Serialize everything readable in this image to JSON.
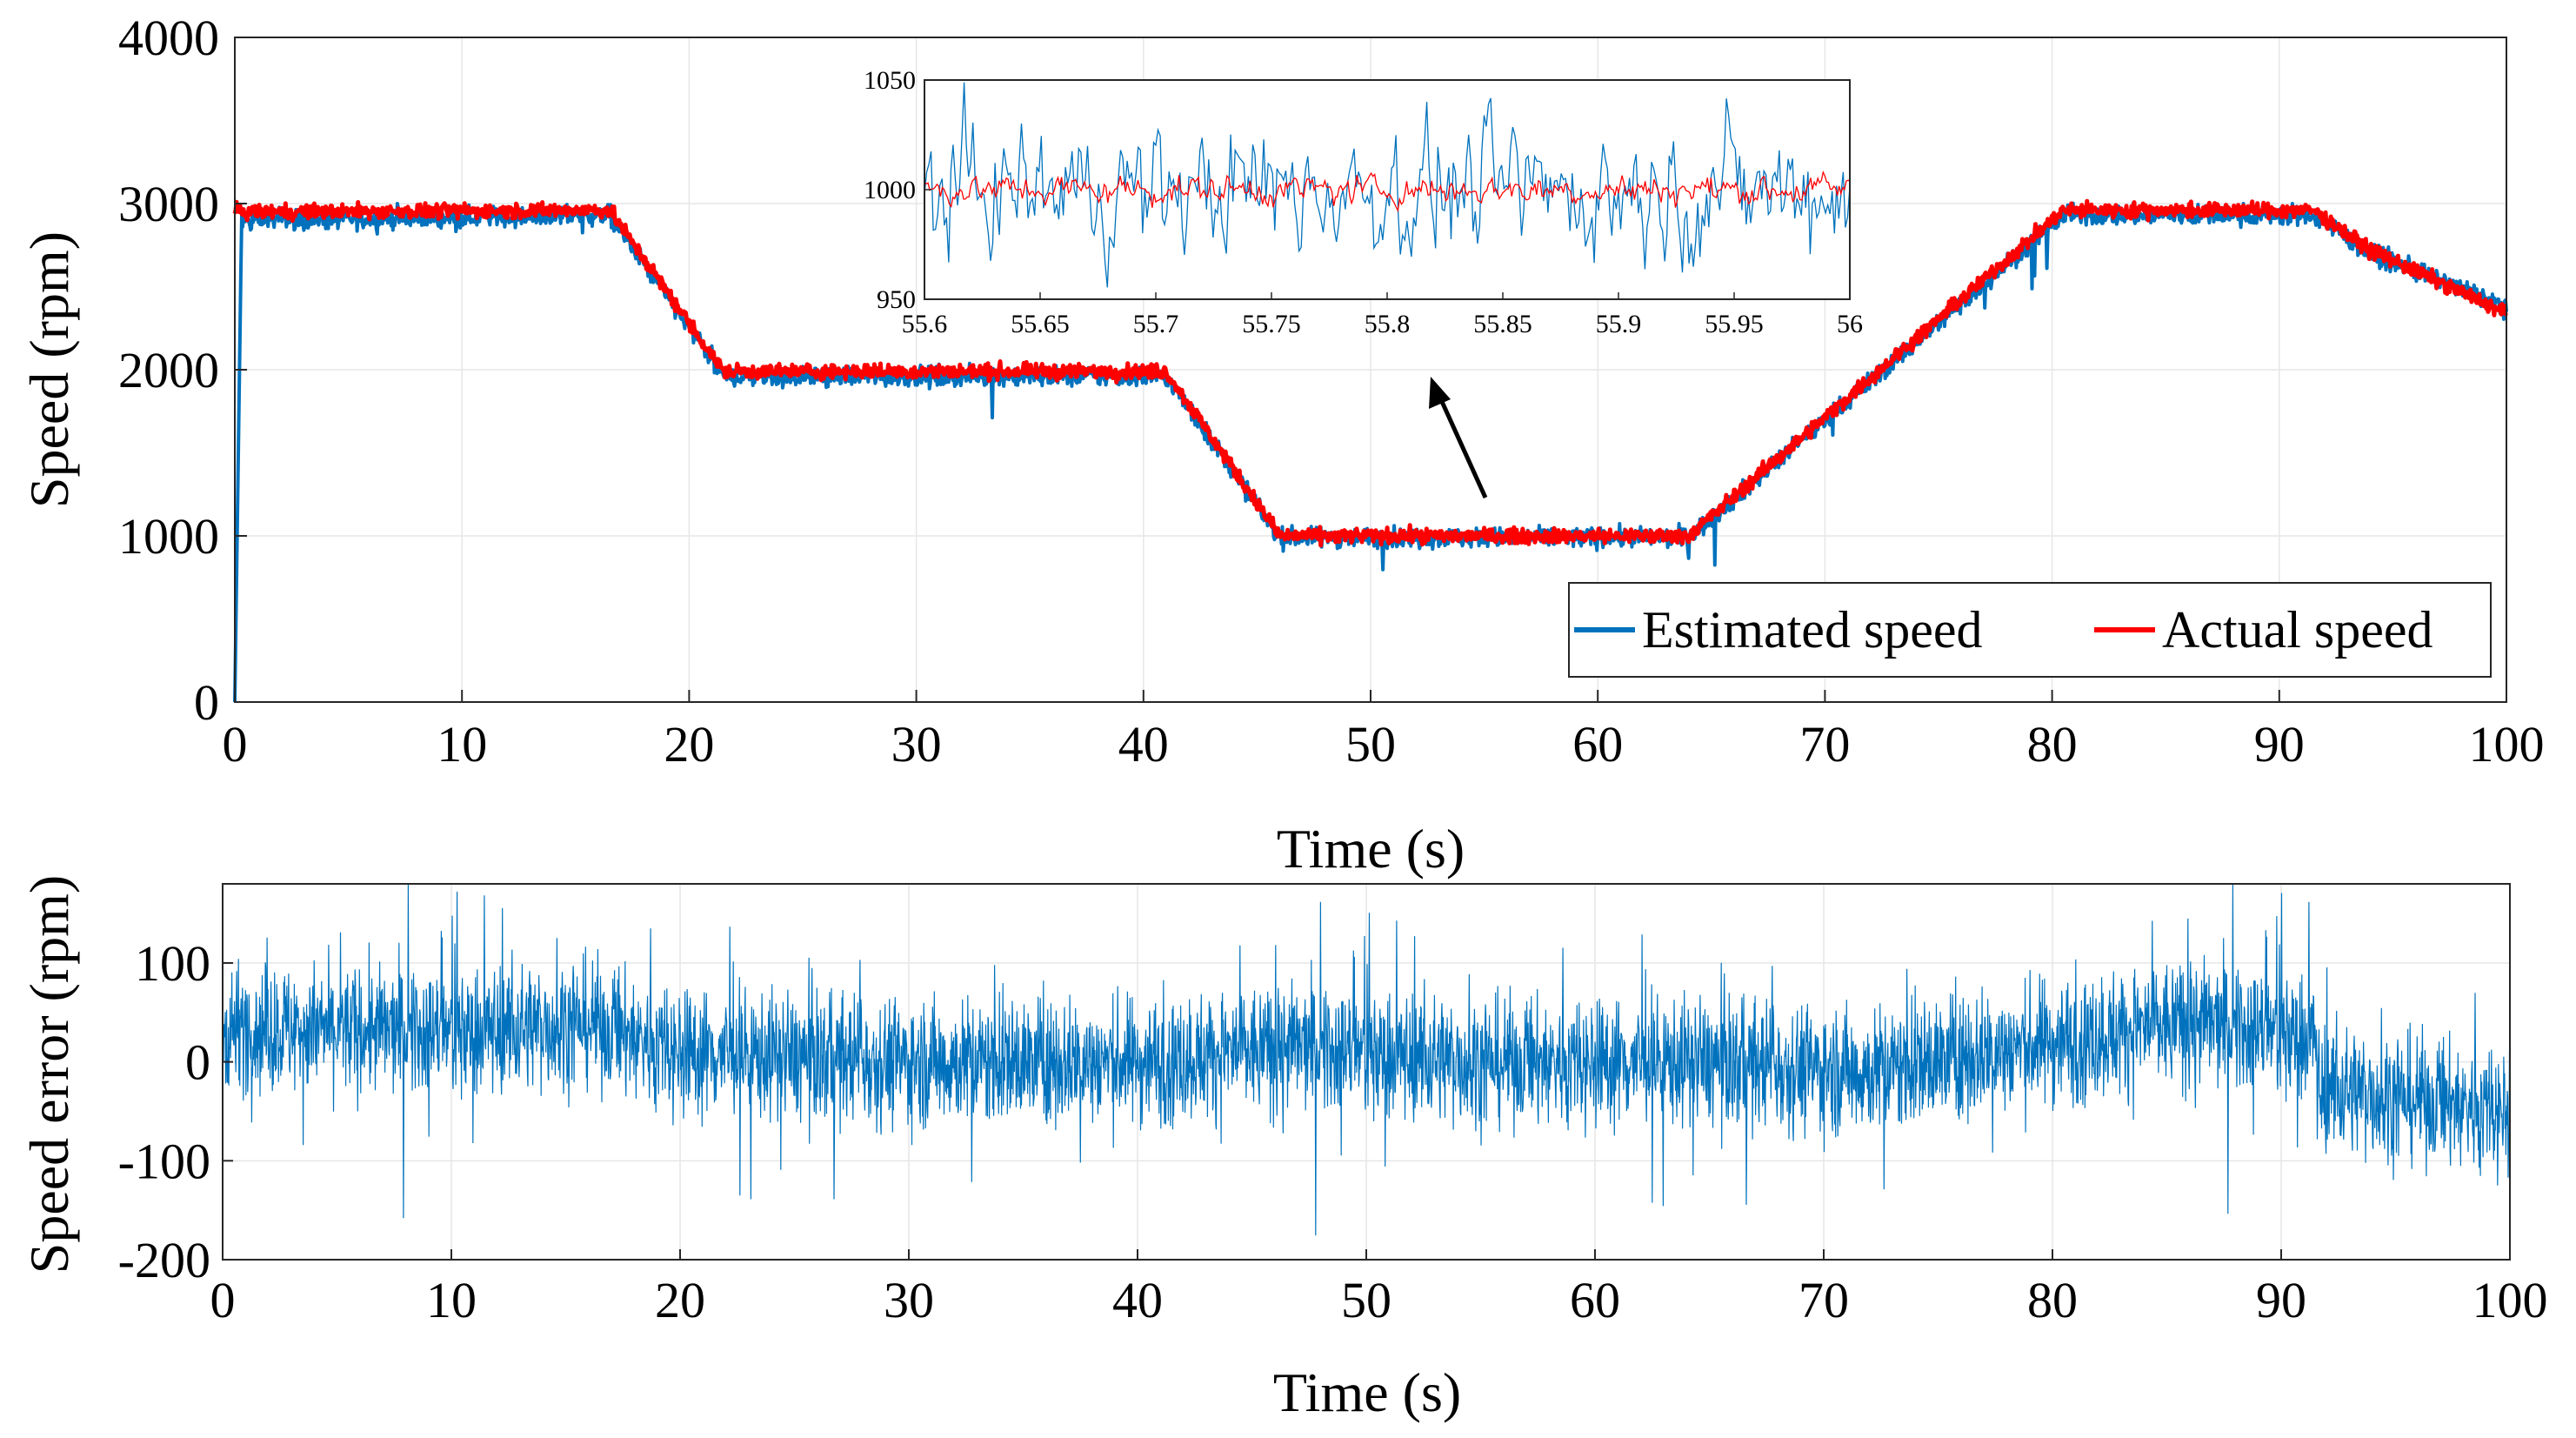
{
  "colors": {
    "estimated": "#0072BD",
    "actual": "#FF0000",
    "frame": "#262626",
    "grid": "#E6E6E6",
    "arrow": "#000000"
  },
  "chart_data": [
    {
      "id": "speed",
      "type": "line",
      "xlabel": "Time (s)",
      "ylabel": "Speed (rpm)",
      "xlim": [
        0,
        100
      ],
      "ylim": [
        0,
        4000
      ],
      "xticks": [
        0,
        10,
        20,
        30,
        40,
        50,
        60,
        70,
        80,
        90,
        100
      ],
      "yticks": [
        0,
        1000,
        2000,
        3000,
        4000
      ],
      "grid": true,
      "legend_position": "bottom-right",
      "series": [
        {
          "name": "Estimated speed",
          "color": "#0072BD",
          "profile": [
            [
              0,
              0
            ],
            [
              0.3,
              2900
            ],
            [
              16.5,
              2930
            ],
            [
              21.5,
              1960
            ],
            [
              41,
              1960
            ],
            [
              46,
              990
            ],
            [
              64,
              990
            ],
            [
              80.5,
              2930
            ],
            [
              91.5,
              2930
            ],
            [
              94,
              2700
            ],
            [
              100,
              2380
            ]
          ],
          "noise_rpm": 30
        },
        {
          "name": "Actual speed",
          "color": "#FF0000",
          "profile": [
            [
              0,
              2950
            ],
            [
              16.5,
              2960
            ],
            [
              21.5,
              1990
            ],
            [
              41,
              1990
            ],
            [
              46,
              1000
            ],
            [
              64,
              1000
            ],
            [
              80.5,
              2960
            ],
            [
              91.5,
              2960
            ],
            [
              94,
              2720
            ],
            [
              100,
              2340
            ]
          ],
          "noise_rpm": 22
        }
      ]
    },
    {
      "id": "inset",
      "type": "line",
      "xlim": [
        55.6,
        56
      ],
      "ylim": [
        950,
        1050
      ],
      "xticks": [
        55.6,
        55.65,
        55.7,
        55.75,
        55.8,
        55.85,
        55.9,
        55.95,
        56
      ],
      "yticks": [
        950,
        1000,
        1050
      ],
      "series": [
        {
          "name": "Estimated speed",
          "color": "#0072BD",
          "mean": 1000,
          "noise_rpm": 18
        },
        {
          "name": "Actual speed",
          "color": "#FF0000",
          "mean": 1000,
          "noise_rpm": 4
        }
      ]
    },
    {
      "id": "error",
      "type": "line",
      "xlabel": "Time (s)",
      "ylabel": "Speed error (rpm)",
      "xlim": [
        0,
        100
      ],
      "ylim": [
        -200,
        180
      ],
      "xticks": [
        0,
        10,
        20,
        30,
        40,
        50,
        60,
        70,
        80,
        90,
        100
      ],
      "yticks": [
        -200,
        -100,
        0,
        100
      ],
      "grid": true,
      "series": [
        {
          "name": "Speed error",
          "color": "#0072BD",
          "baseline": [
            [
              0,
              35
            ],
            [
              10,
              30
            ],
            [
              16,
              40
            ],
            [
              20,
              10
            ],
            [
              30,
              0
            ],
            [
              40,
              0
            ],
            [
              47,
              15
            ],
            [
              55,
              0
            ],
            [
              65,
              0
            ],
            [
              72,
              -10
            ],
            [
              80,
              20
            ],
            [
              86,
              40
            ],
            [
              91.5,
              25
            ],
            [
              91.6,
              -25
            ],
            [
              100,
              -50
            ]
          ],
          "noise_rpm": 32
        }
      ]
    }
  ]
}
